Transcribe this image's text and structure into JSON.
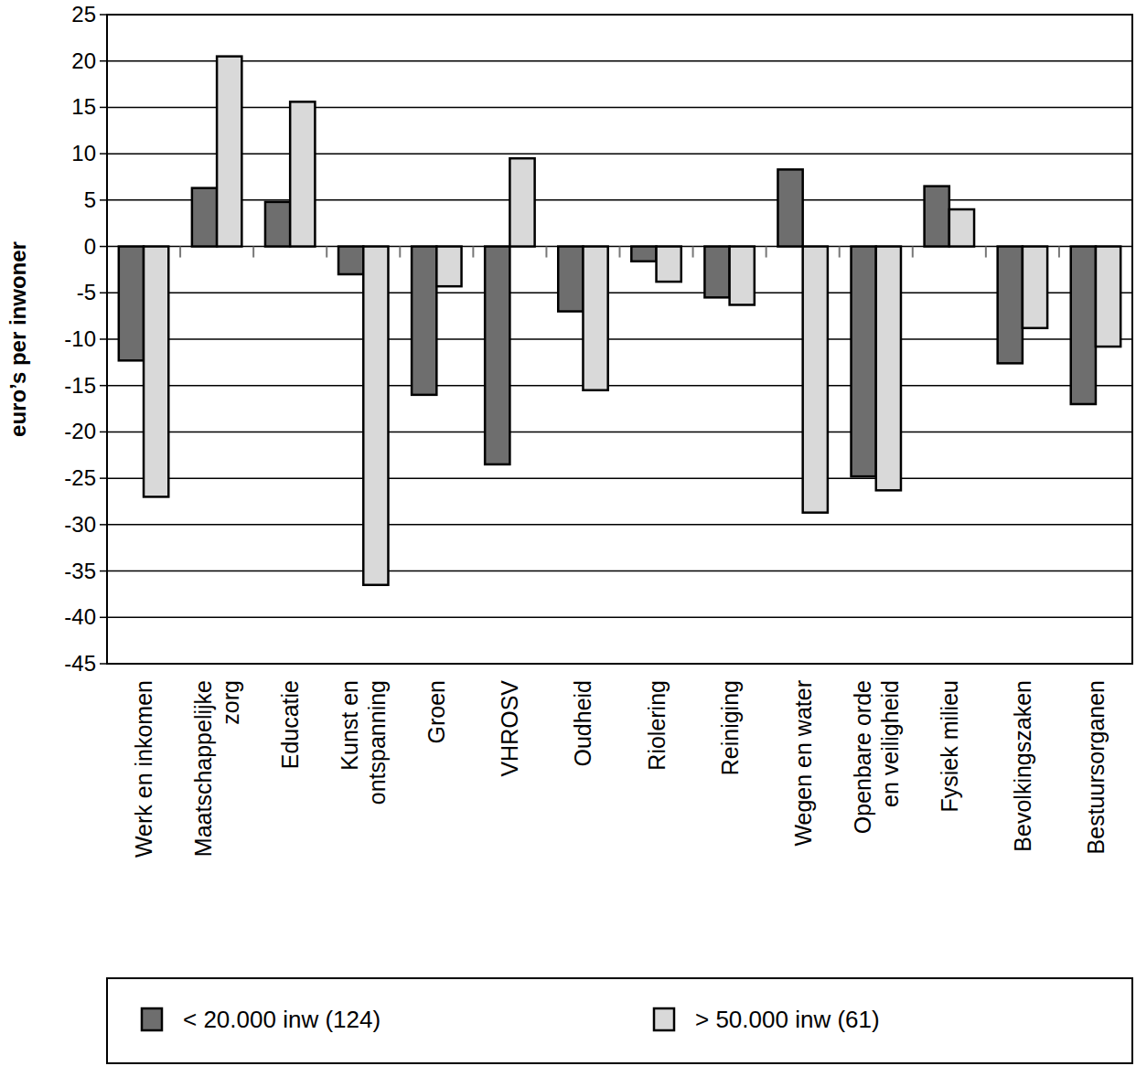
{
  "chart_data": {
    "type": "bar",
    "y_label": "euro’s per inwoner",
    "categories": [
      "Werk en inkomen",
      "Maatschappelijke zorg",
      "Educatie",
      "Kunst en ontspanning",
      "Groen",
      "VHROSV",
      "Oudheid",
      "Riolering",
      "Reiniging",
      "Wegen en water",
      "Openbare orde en veiligheid",
      "Fysiek milieu",
      "Bevolkingszaken",
      "Bestuursorganen"
    ],
    "series": [
      {
        "name": "< 20.000 inw (124)",
        "color": "#6e6e6e",
        "values": [
          -12.3,
          6.3,
          4.8,
          -3,
          -16,
          -23.5,
          -7,
          -1.6,
          -5.5,
          8.3,
          -24.8,
          6.5,
          -12.6,
          -17
        ]
      },
      {
        "name": "> 50.000 inw (61)",
        "color": "#d9d9d9",
        "values": [
          -27,
          20.5,
          15.6,
          -36.5,
          -4.3,
          9.5,
          -15.5,
          -3.8,
          -6.3,
          -28.7,
          -26.3,
          4,
          -8.8,
          -10.8
        ]
      }
    ],
    "ylim": [
      -45,
      25
    ],
    "yticks": [
      -45,
      -40,
      -35,
      -30,
      -25,
      -20,
      -15,
      -10,
      -5,
      0,
      5,
      10,
      15,
      20,
      25
    ],
    "grid": true,
    "legend": "bottom"
  }
}
